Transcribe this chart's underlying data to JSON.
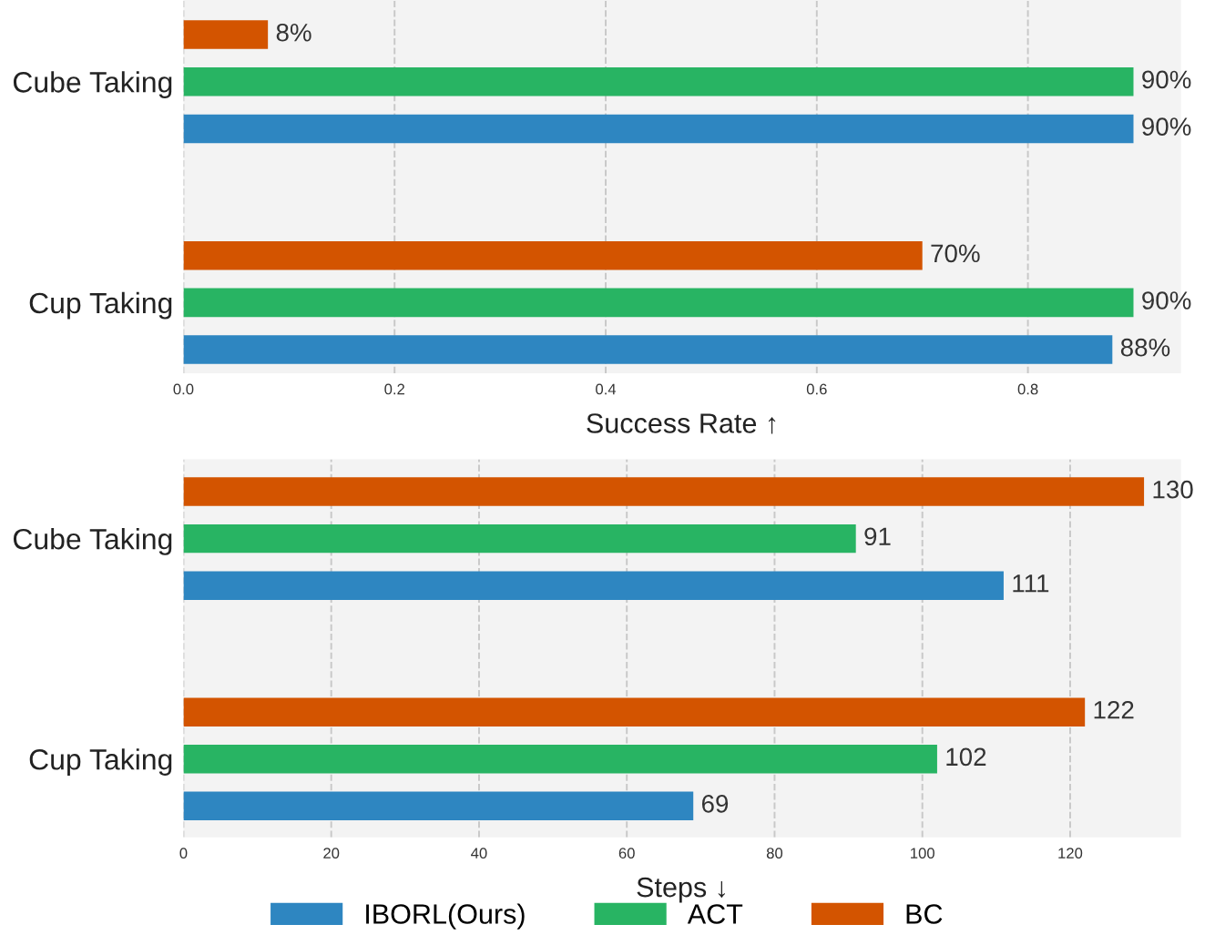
{
  "chart_data": [
    {
      "type": "bar",
      "orientation": "horizontal",
      "xlabel": "Success Rate ↑",
      "categories": [
        "Cube Taking",
        "Cup Taking"
      ],
      "series": [
        {
          "color": "#2e86c1",
          "values": [
            0.9,
            0.88
          ],
          "value_labels": [
            "90%",
            "88%"
          ]
        },
        {
          "color": "#28b463",
          "values": [
            0.9,
            0.9
          ],
          "value_labels": [
            "90%",
            "90%"
          ]
        },
        {
          "color": "#d35400",
          "values": [
            0.08,
            0.7
          ],
          "value_labels": [
            "8%",
            "70%"
          ]
        }
      ],
      "xlim": [
        0,
        0.945
      ],
      "xticks": [
        {
          "value": 0,
          "label": "0.0"
        },
        0.2,
        0.4,
        0.6,
        0.8
      ],
      "grid": "x"
    },
    {
      "type": "bar",
      "orientation": "horizontal",
      "xlabel": "Steps ↓",
      "categories": [
        "Cube Taking",
        "Cup Taking"
      ],
      "series": [
        {
          "name": "IBORL(Ours)",
          "color": "#2e86c1",
          "values": [
            111,
            69
          ]
        },
        {
          "name": "ACT",
          "color": "#28b463",
          "values": [
            91,
            102
          ]
        },
        {
          "name": "BC",
          "color": "#d35400",
          "values": [
            130,
            122
          ]
        }
      ],
      "data_labels": true,
      "xlim": [
        0,
        135
      ],
      "xticks": [
        0,
        20,
        40,
        60,
        80,
        100,
        120
      ],
      "grid": "x",
      "legend": "bottom"
    }
  ]
}
